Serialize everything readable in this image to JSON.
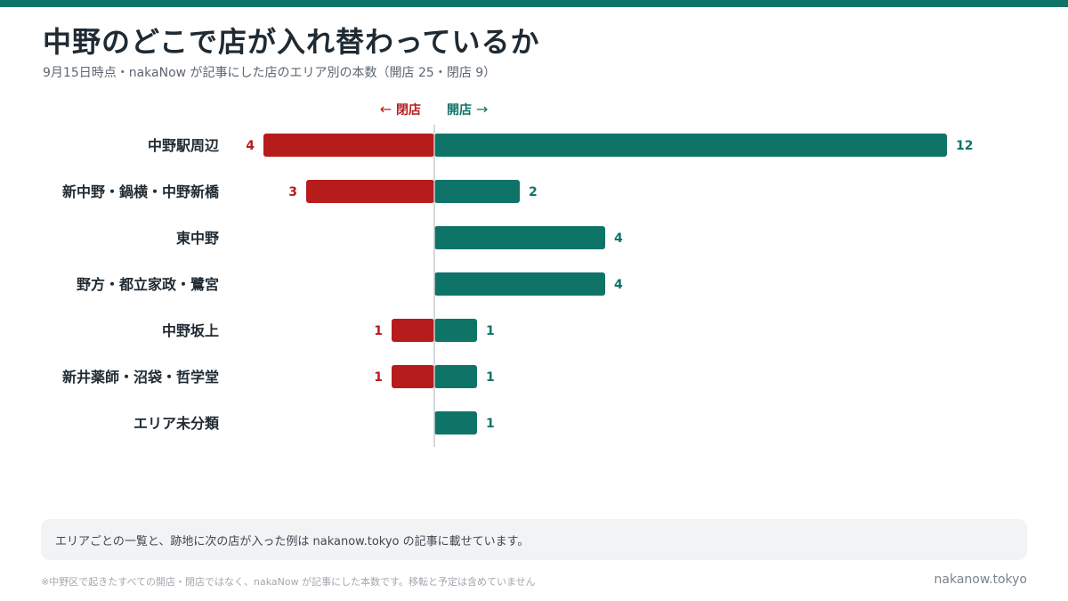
{
  "header": {
    "title": "中野のどこで店が入れ替わっているか",
    "subtitle": "9月15日時点・nakaNow が記事にした店のエリア別の本数（開店 25・閉店 9）"
  },
  "legend": {
    "close_label": "閉店",
    "close_arrow": "←",
    "open_label": "開店",
    "open_arrow": "→"
  },
  "chart_data": {
    "type": "bar",
    "orientation": "horizontal-diverging",
    "categories": [
      "中野駅周辺",
      "新中野・鍋横・中野新橋",
      "東中野",
      "野方・都立家政・鷺宮",
      "中野坂上",
      "新井薬師・沼袋・哲学堂",
      "エリア未分類"
    ],
    "series": [
      {
        "name": "閉店",
        "values": [
          4,
          3,
          0,
          0,
          1,
          1,
          0
        ]
      },
      {
        "name": "開店",
        "values": [
          12,
          2,
          4,
          4,
          1,
          1,
          1
        ]
      }
    ],
    "grid": false
  },
  "colors": {
    "close": "#b71c1c",
    "open": "#0e7468",
    "axis": "#c8ccd0",
    "category_text": "#1f2a33"
  },
  "note": {
    "text": "エリアごとの一覧と、跡地に次の店が入った例は nakanow.tokyo の記事に載せています。"
  },
  "footer": {
    "footnote": "※中野区で起きたすべての開店・閉店ではなく、nakaNow が記事にした本数です。移転と予定は含めていません",
    "site": "nakanow.tokyo"
  }
}
